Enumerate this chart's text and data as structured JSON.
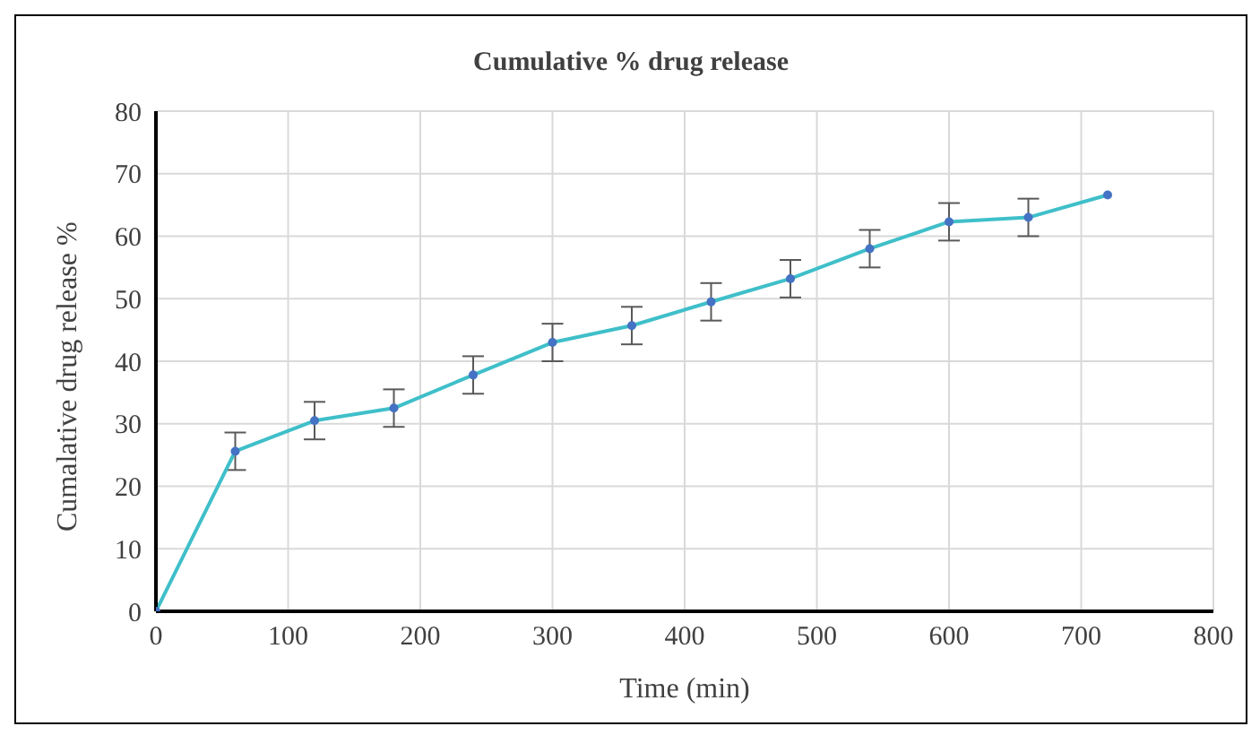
{
  "chart_data": {
    "type": "line",
    "title": "Cumulative % drug release",
    "xlabel": "Time (min)",
    "ylabel": "Cumalative drug release %",
    "x": [
      0,
      60,
      120,
      180,
      240,
      300,
      360,
      420,
      480,
      540,
      600,
      660,
      720
    ],
    "series": [
      {
        "color": "#3fbfc9",
        "values": [
          0,
          25.6,
          30.5,
          32.5,
          37.8,
          43,
          45.7,
          49.5,
          53.2,
          58,
          62.3,
          63,
          66.6
        ],
        "errors": [
          null,
          3,
          3,
          3,
          3,
          3,
          3,
          3,
          3,
          3,
          3,
          3,
          null
        ]
      }
    ],
    "xlim": [
      0,
      800
    ],
    "xticks": [
      0,
      100,
      200,
      300,
      400,
      500,
      600,
      700,
      800
    ],
    "ylim": [
      0,
      80
    ],
    "yticks": [
      0,
      10,
      20,
      30,
      40,
      50,
      60,
      70,
      80
    ],
    "grid": true,
    "legend": false,
    "marker": "circle",
    "line_style": "solid"
  }
}
